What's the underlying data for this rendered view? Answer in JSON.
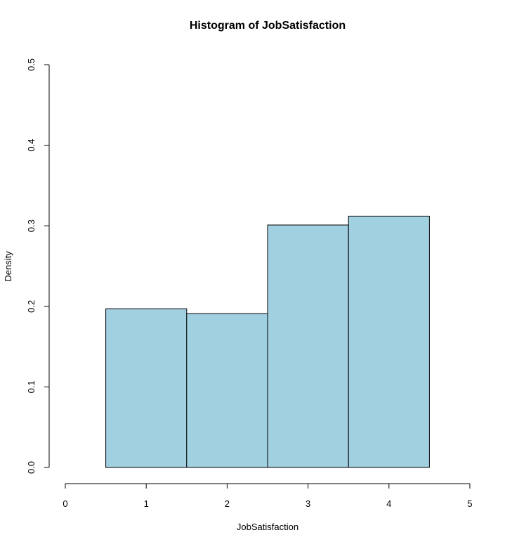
{
  "chart_data": {
    "type": "bar",
    "title": "Histogram of JobSatisfaction",
    "xlabel": "JobSatisfaction",
    "ylabel": "Density",
    "xlim": [
      0,
      5
    ],
    "ylim": [
      0,
      0.5
    ],
    "x_ticks": [
      "0",
      "1",
      "2",
      "3",
      "4",
      "5"
    ],
    "y_ticks": [
      "0.0",
      "0.1",
      "0.2",
      "0.3",
      "0.4",
      "0.5"
    ],
    "bins": [
      {
        "from": 0.5,
        "to": 1.5,
        "density": 0.197
      },
      {
        "from": 1.5,
        "to": 2.5,
        "density": 0.191
      },
      {
        "from": 2.5,
        "to": 3.5,
        "density": 0.301
      },
      {
        "from": 3.5,
        "to": 4.5,
        "density": 0.312
      }
    ],
    "bar_color": "#a1d0e1",
    "grid": false
  }
}
